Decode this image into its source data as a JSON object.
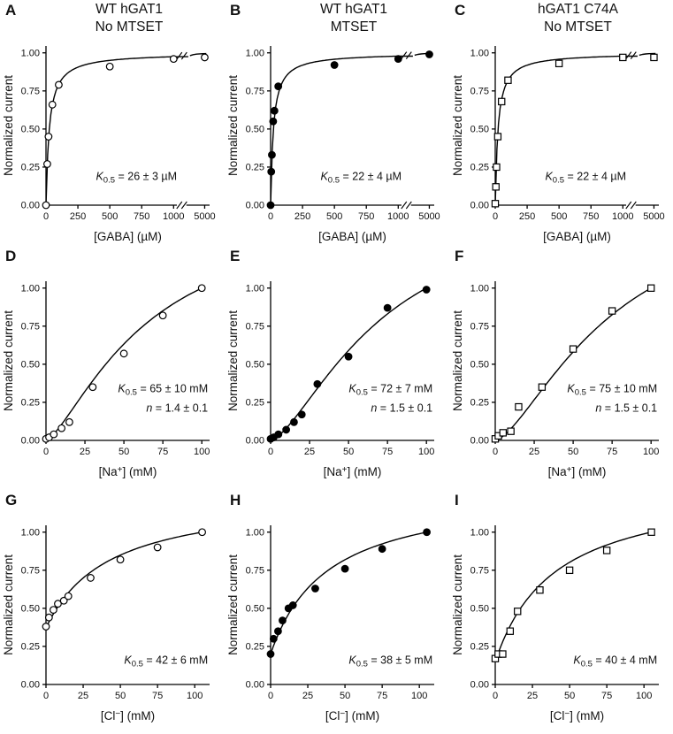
{
  "figure": {
    "columns": [
      {
        "title_line1": "WT hGAT1",
        "title_line2": "No MTSET"
      },
      {
        "title_line1": "WT hGAT1",
        "title_line2": "MTSET"
      },
      {
        "title_line1": "hGAT1 C74A",
        "title_line2": "No MTSET"
      }
    ]
  },
  "chart_data": [
    {
      "panel": "A",
      "type": "scatter",
      "marker": "open-circle",
      "title": "WT hGAT1",
      "subtitle": "No MTSET",
      "ylabel": "Normalized current",
      "xlabel_pre": "[GABA] (µM)",
      "xlabel_sup": "",
      "xlabel_post": "",
      "x_ticks": [
        0,
        250,
        500,
        750,
        1000,
        5000
      ],
      "y_ticks": [
        0,
        0.25,
        0.5,
        0.75,
        1
      ],
      "ylim": [
        0,
        1
      ],
      "axis_break": true,
      "xmax": 1000,
      "annotation": {
        "k_label": "K",
        "k_sub": "0.5",
        "k_text": "= 26 ± 3 µM"
      },
      "fit": {
        "model": "mm",
        "K": 26
      },
      "points": {
        "x": [
          0,
          10,
          20,
          50,
          100,
          500,
          1000,
          5000
        ],
        "y": [
          0,
          0.27,
          0.45,
          0.66,
          0.79,
          0.91,
          0.96,
          0.97
        ]
      }
    },
    {
      "panel": "B",
      "type": "scatter",
      "marker": "filled-circle",
      "title": "WT hGAT1",
      "subtitle": "MTSET",
      "ylabel": "Normalized current",
      "xlabel_pre": "[GABA] (µM)",
      "xlabel_sup": "",
      "xlabel_post": "",
      "x_ticks": [
        0,
        250,
        500,
        750,
        1000,
        5000
      ],
      "y_ticks": [
        0,
        0.25,
        0.5,
        0.75,
        1
      ],
      "ylim": [
        0,
        1
      ],
      "axis_break": true,
      "xmax": 1000,
      "annotation": {
        "k_label": "K",
        "k_sub": "0.5",
        "k_text": "= 22 ± 4 µM"
      },
      "fit": {
        "model": "mm",
        "K": 22
      },
      "points": {
        "x": [
          0,
          5,
          10,
          20,
          30,
          60,
          500,
          1000,
          5000
        ],
        "y": [
          0,
          0.22,
          0.33,
          0.55,
          0.62,
          0.78,
          0.92,
          0.96,
          0.99
        ]
      }
    },
    {
      "panel": "C",
      "type": "scatter",
      "marker": "open-square",
      "title": "hGAT1 C74A",
      "subtitle": "No MTSET",
      "ylabel": "Normalized current",
      "xlabel_pre": "[GABA] (µM)",
      "xlabel_sup": "",
      "xlabel_post": "",
      "x_ticks": [
        0,
        250,
        500,
        750,
        1000,
        5000
      ],
      "y_ticks": [
        0,
        0.25,
        0.5,
        0.75,
        1
      ],
      "ylim": [
        0,
        1
      ],
      "axis_break": true,
      "xmax": 1000,
      "annotation": {
        "k_label": "K",
        "k_sub": "0.5",
        "k_text": "= 22 ± 4 µM"
      },
      "fit": {
        "model": "mm",
        "K": 22
      },
      "points": {
        "x": [
          0,
          5,
          10,
          20,
          50,
          100,
          500,
          1000,
          5000
        ],
        "y": [
          0.01,
          0.12,
          0.25,
          0.45,
          0.68,
          0.82,
          0.93,
          0.97,
          0.97
        ]
      }
    },
    {
      "panel": "D",
      "type": "scatter",
      "marker": "open-circle",
      "ylabel": "Normalized current",
      "xlabel_pre": "[Na",
      "xlabel_sup": "+",
      "xlabel_post": "] (mM)",
      "x_ticks": [
        0,
        25,
        50,
        75,
        100
      ],
      "y_ticks": [
        0,
        0.25,
        0.5,
        0.75,
        1
      ],
      "ylim": [
        0,
        1
      ],
      "axis_break": false,
      "xmax": 105,
      "annotation": {
        "k_label": "K",
        "k_sub": "0.5",
        "k_text": "= 65 ± 10 mM",
        "n_label": "n",
        "n_text": "= 1.4 ± 0.1"
      },
      "fit": {
        "model": "hill",
        "K": 65,
        "n": 1.4,
        "xnorm": 100
      },
      "points": {
        "x": [
          0,
          2,
          5,
          10,
          15,
          30,
          50,
          75,
          100
        ],
        "y": [
          0.01,
          0.02,
          0.04,
          0.08,
          0.12,
          0.35,
          0.57,
          0.82,
          1.0
        ]
      }
    },
    {
      "panel": "E",
      "type": "scatter",
      "marker": "filled-circle",
      "ylabel": "Normalized current",
      "xlabel_pre": "[Na",
      "xlabel_sup": "+",
      "xlabel_post": "] (mM)",
      "x_ticks": [
        0,
        25,
        50,
        75,
        100
      ],
      "y_ticks": [
        0,
        0.25,
        0.5,
        0.75,
        1
      ],
      "ylim": [
        0,
        1
      ],
      "axis_break": false,
      "xmax": 105,
      "annotation": {
        "k_label": "K",
        "k_sub": "0.5",
        "k_text": "= 72 ± 7 mM",
        "n_label": "n",
        "n_text": "= 1.5 ± 0.1"
      },
      "fit": {
        "model": "hill",
        "K": 72,
        "n": 1.5,
        "xnorm": 100
      },
      "points": {
        "x": [
          0,
          2,
          5,
          10,
          15,
          20,
          30,
          50,
          75,
          100
        ],
        "y": [
          0.01,
          0.02,
          0.04,
          0.07,
          0.12,
          0.17,
          0.37,
          0.55,
          0.87,
          0.99
        ]
      }
    },
    {
      "panel": "F",
      "type": "scatter",
      "marker": "open-square",
      "ylabel": "Normalized current",
      "xlabel_pre": "[Na",
      "xlabel_sup": "+",
      "xlabel_post": "] (mM)",
      "x_ticks": [
        0,
        25,
        50,
        75,
        100
      ],
      "y_ticks": [
        0,
        0.25,
        0.5,
        0.75,
        1
      ],
      "ylim": [
        0,
        1
      ],
      "axis_break": false,
      "xmax": 105,
      "annotation": {
        "k_label": "K",
        "k_sub": "0.5",
        "k_text": "= 75 ± 10 mM",
        "n_label": "n",
        "n_text": "= 1.5 ± 0.1"
      },
      "fit": {
        "model": "hill",
        "K": 75,
        "n": 1.5,
        "xnorm": 100
      },
      "points": {
        "x": [
          0,
          2,
          5,
          10,
          15,
          30,
          50,
          75,
          100
        ],
        "y": [
          0.01,
          0.03,
          0.05,
          0.06,
          0.22,
          0.35,
          0.6,
          0.85,
          1.0
        ]
      }
    },
    {
      "panel": "G",
      "type": "scatter",
      "marker": "open-circle",
      "ylabel": "Normalized current",
      "xlabel_pre": "[Cl",
      "xlabel_sup": "−",
      "xlabel_post": "] (mM)",
      "x_ticks": [
        0,
        25,
        50,
        75,
        100
      ],
      "y_ticks": [
        0,
        0.25,
        0.5,
        0.75,
        1
      ],
      "ylim": [
        0,
        1
      ],
      "axis_break": false,
      "xmax": 110,
      "annotation": {
        "k_label": "K",
        "k_sub": "0.5",
        "k_text": "= 42 ± 6 mM"
      },
      "fit": {
        "model": "mm_offset",
        "K": 42,
        "y0": 0.37,
        "xnorm": 105
      },
      "points": {
        "x": [
          0,
          2,
          5,
          8,
          12,
          15,
          30,
          50,
          75,
          105
        ],
        "y": [
          0.38,
          0.44,
          0.49,
          0.53,
          0.55,
          0.58,
          0.7,
          0.82,
          0.9,
          1.0
        ]
      }
    },
    {
      "panel": "H",
      "type": "scatter",
      "marker": "filled-circle",
      "ylabel": "Normalized current",
      "xlabel_pre": "[Cl",
      "xlabel_sup": "−",
      "xlabel_post": "] (mM)",
      "x_ticks": [
        0,
        25,
        50,
        75,
        100
      ],
      "y_ticks": [
        0,
        0.25,
        0.5,
        0.75,
        1
      ],
      "ylim": [
        0,
        1
      ],
      "axis_break": false,
      "xmax": 110,
      "annotation": {
        "k_label": "K",
        "k_sub": "0.5",
        "k_text": "= 38 ± 5 mM"
      },
      "fit": {
        "model": "mm_offset",
        "K": 38,
        "y0": 0.2,
        "xnorm": 105
      },
      "points": {
        "x": [
          0,
          2,
          5,
          8,
          12,
          15,
          30,
          50,
          75,
          105
        ],
        "y": [
          0.2,
          0.3,
          0.35,
          0.42,
          0.5,
          0.52,
          0.63,
          0.76,
          0.89,
          1.0
        ]
      }
    },
    {
      "panel": "I",
      "type": "scatter",
      "marker": "open-square",
      "ylabel": "Normalized current",
      "xlabel_pre": "[Cl",
      "xlabel_sup": "−",
      "xlabel_post": "] (mM)",
      "x_ticks": [
        0,
        25,
        50,
        75,
        100
      ],
      "y_ticks": [
        0,
        0.25,
        0.5,
        0.75,
        1
      ],
      "ylim": [
        0,
        1
      ],
      "axis_break": false,
      "xmax": 110,
      "annotation": {
        "k_label": "K",
        "k_sub": "0.5",
        "k_text": "= 40 ± 4 mM"
      },
      "fit": {
        "model": "mm_offset",
        "K": 40,
        "y0": 0.15,
        "xnorm": 105
      },
      "points": {
        "x": [
          0,
          2,
          5,
          10,
          15,
          30,
          50,
          75,
          105
        ],
        "y": [
          0.17,
          0.2,
          0.2,
          0.35,
          0.48,
          0.62,
          0.75,
          0.88,
          1.0
        ]
      }
    }
  ]
}
